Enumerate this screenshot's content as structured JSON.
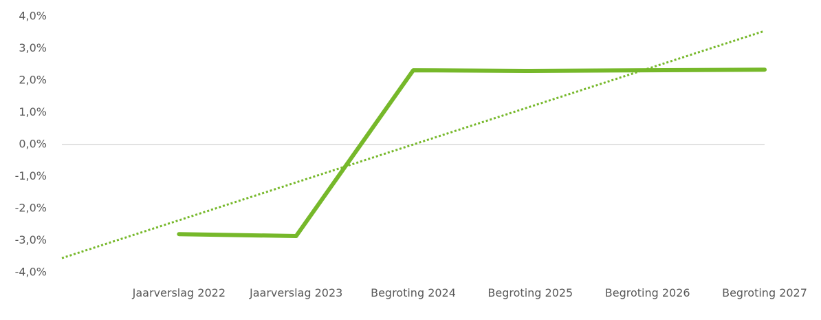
{
  "chart_data": {
    "type": "line",
    "categories": [
      "Jaarverslag 2022",
      "Jaarverslag 2023",
      "Begroting 2024",
      "Begroting 2025",
      "Begroting 2026",
      "Begroting 2027"
    ],
    "series": [
      {
        "color": "#76b82a",
        "values": [
          -2.8,
          -2.86,
          2.32,
          2.3,
          2.32,
          2.34
        ]
      }
    ],
    "trendline": {
      "color": "#76b82a",
      "style": "dotted",
      "values": [
        -3.55,
        3.55
      ]
    },
    "ylim": [
      -4,
      4
    ],
    "yticks": [
      {
        "value": 4,
        "label": "4,0%"
      },
      {
        "value": 3,
        "label": "3,0%"
      },
      {
        "value": 2,
        "label": "2,0%"
      },
      {
        "value": 1,
        "label": "1,0%"
      },
      {
        "value": 0,
        "label": "0,0%"
      },
      {
        "value": -1,
        "label": "-1,0%"
      },
      {
        "value": -2,
        "label": "-2,0%"
      },
      {
        "value": -3,
        "label": "-3,0%"
      },
      {
        "value": -4,
        "label": "-4,0%"
      }
    ],
    "grid": false
  }
}
